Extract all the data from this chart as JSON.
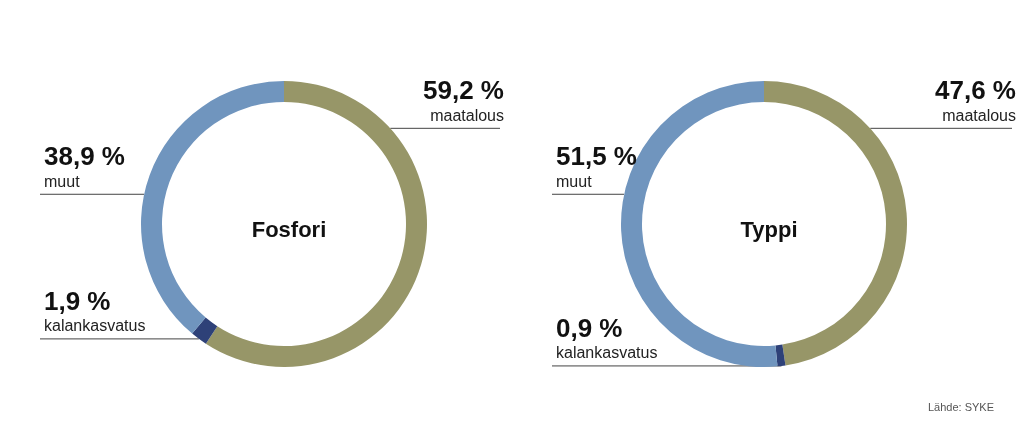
{
  "chart_data": [
    {
      "type": "donut",
      "title": "Fosfori",
      "categories": [
        "maatalous",
        "kalankasvatus",
        "muut"
      ],
      "values": [
        59.2,
        1.9,
        38.9
      ],
      "colors": [
        "#979668",
        "#2e4178",
        "#7095be"
      ],
      "value_labels": [
        "59,2 %",
        "1,9 %",
        "38,9 %"
      ]
    },
    {
      "type": "donut",
      "title": "Typpi",
      "categories": [
        "maatalous",
        "kalankasvatus",
        "muut"
      ],
      "values": [
        47.6,
        0.9,
        51.5
      ],
      "colors": [
        "#979668",
        "#2e4178",
        "#7095be"
      ],
      "value_labels": [
        "47,6 %",
        "0,9 %",
        "51,5 %"
      ],
      "annotations": [
        "Lähde: SYKE"
      ]
    }
  ]
}
